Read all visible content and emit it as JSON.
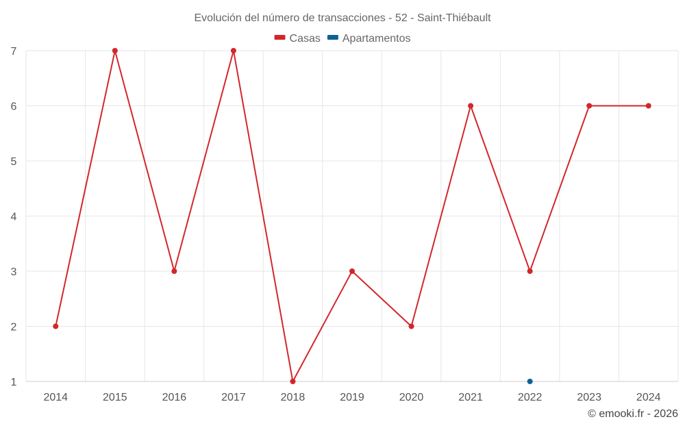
{
  "chart_data": {
    "type": "line",
    "title": "Evolución del número de transacciones - 52 - Saint-Thiébault",
    "xlabel": "",
    "ylabel": "",
    "categories": [
      "2014",
      "2015",
      "2016",
      "2017",
      "2018",
      "2019",
      "2020",
      "2021",
      "2022",
      "2023",
      "2024"
    ],
    "ylim": [
      1,
      7
    ],
    "yticks": [
      1,
      2,
      3,
      4,
      5,
      6,
      7
    ],
    "grid": true,
    "legend_position": "top-center",
    "series": [
      {
        "name": "Casas",
        "color": "#d3262b",
        "values": [
          2,
          7,
          3,
          7,
          1,
          3,
          2,
          6,
          3,
          6,
          6
        ]
      },
      {
        "name": "Apartamentos",
        "color": "#0f6196",
        "values": [
          null,
          null,
          null,
          null,
          null,
          null,
          null,
          null,
          1,
          null,
          null
        ]
      }
    ]
  },
  "credit": "© emooki.fr - 2026"
}
